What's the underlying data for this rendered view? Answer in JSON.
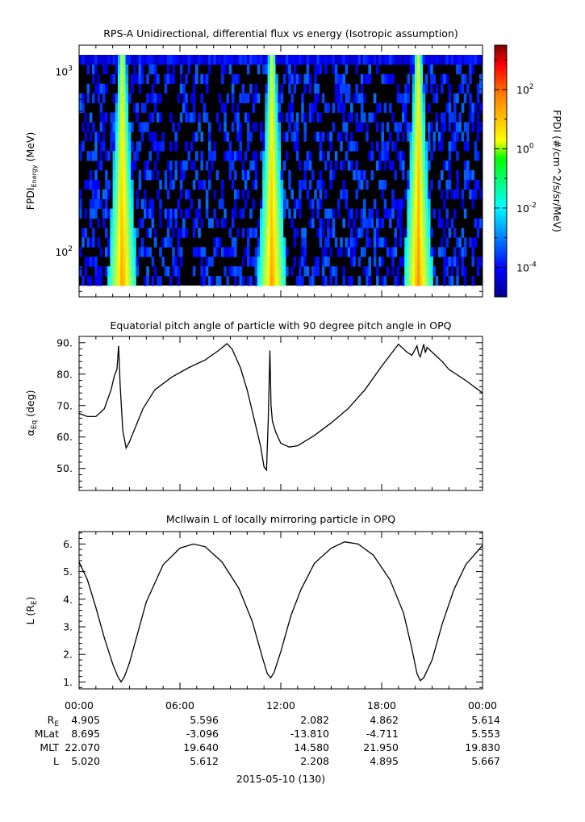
{
  "date_label": "2015-05-10 (130)",
  "time_ticks": [
    "00:00",
    "06:00",
    "12:00",
    "18:00",
    "00:00"
  ],
  "ephemeris": {
    "rows": [
      {
        "label": "R",
        "sub": "E",
        "values": [
          "4.905",
          "5.596",
          "2.082",
          "4.862",
          "5.614"
        ]
      },
      {
        "label": "MLat",
        "sub": "",
        "values": [
          "8.695",
          "-3.096",
          "-13.810",
          "-4.711",
          "5.553"
        ]
      },
      {
        "label": "MLT",
        "sub": "",
        "values": [
          "22.070",
          "19.640",
          "14.580",
          "21.950",
          "19.830"
        ]
      },
      {
        "label": "L",
        "sub": "",
        "values": [
          "5.020",
          "5.612",
          "2.208",
          "4.895",
          "5.667"
        ]
      }
    ]
  },
  "colors": {
    "line": "#000000",
    "background": "#000000",
    "fill_gap_color": "#ffffff"
  },
  "chart_data": [
    {
      "type": "heatmap",
      "title": "RPS-A Unidirectional, differential flux vs energy (Isotropic assumption)",
      "ylabel": "FPDI",
      "ylabel_sub": "Energy",
      "ylabel_units": "(MeV)",
      "yscale": "log",
      "ylim": [
        56,
        1400
      ],
      "yticks": [
        {
          "value": 100,
          "base": "10",
          "exp": "2"
        },
        {
          "value": 1000,
          "base": "10",
          "exp": "3"
        }
      ],
      "xlim": [
        0,
        24
      ],
      "colorbar": {
        "label": "FPDI (#/cm^2/s/sr/MeV)",
        "scale": "log",
        "range_exp": [
          -5,
          3.5
        ],
        "colormap": "jet",
        "ticks": [
          {
            "base": "10",
            "exp": "2",
            "value_exp": 2
          },
          {
            "base": "10",
            "exp": "0",
            "value_exp": 0
          },
          {
            "base": "10",
            "exp": "-2",
            "value_exp": -2
          },
          {
            "base": "10",
            "exp": "-4",
            "value_exp": -4
          }
        ]
      },
      "radiation_belt_passes": [
        {
          "center_hours": 2.5,
          "peak_log_flux": 1.2
        },
        {
          "center_hours": 11.4,
          "peak_log_flux": 1.2
        },
        {
          "center_hours": 20.1,
          "peak_log_flux": 1.3
        }
      ]
    },
    {
      "type": "line",
      "title": "Equatorial pitch angle of particle with 90 degree pitch angle in OPQ",
      "ylabel": "α",
      "ylabel_sub": "Eq",
      "ylabel_units": "(deg)",
      "xlim": [
        0,
        24
      ],
      "ylim": [
        43,
        92
      ],
      "yticks": [
        "50.",
        "60.",
        "70.",
        "80.",
        "90."
      ],
      "x": [
        0,
        0.5,
        1.0,
        1.5,
        1.9,
        2.1,
        2.25,
        2.35,
        2.45,
        2.6,
        2.8,
        3.0,
        3.3,
        3.8,
        4.5,
        5.5,
        6.5,
        7.5,
        8.3,
        8.8,
        9.1,
        9.6,
        10.0,
        10.4,
        10.8,
        11.0,
        11.15,
        11.25,
        11.35,
        11.42,
        11.5,
        11.7,
        12.0,
        12.5,
        13.0,
        14.0,
        15.0,
        16.0,
        17.0,
        18.0,
        18.5,
        19.0,
        19.5,
        19.8,
        20.1,
        20.2,
        20.3,
        20.4,
        20.5,
        20.6,
        20.7,
        20.8,
        21.2,
        21.6,
        22.0,
        23.0,
        24.0
      ],
      "y": [
        67.5,
        66.5,
        66.5,
        69.0,
        75.0,
        79.5,
        81.5,
        89.0,
        76.0,
        62.0,
        56.5,
        58.5,
        62.5,
        69.0,
        75.0,
        79.0,
        82.0,
        84.5,
        87.5,
        89.7,
        88.0,
        82.0,
        75.0,
        66.0,
        57.0,
        50.5,
        49.5,
        65.0,
        87.5,
        70.0,
        65.0,
        61.5,
        58.0,
        56.8,
        57.2,
        60.5,
        64.5,
        69.0,
        75.0,
        82.5,
        86.0,
        89.5,
        87.0,
        86.0,
        89.0,
        86.5,
        85.5,
        87.5,
        89.5,
        86.8,
        88.5,
        88.0,
        86.0,
        84.0,
        81.5,
        78.0,
        74.0
      ]
    },
    {
      "type": "line",
      "title": "McIlwain L of locally mirroring particle in OPQ",
      "ylabel": "L (R",
      "ylabel_sub": "E",
      "ylabel_units": ")",
      "xlim": [
        0,
        24
      ],
      "ylim": [
        0.75,
        6.45
      ],
      "yticks": [
        "1.",
        "2.",
        "3.",
        "4.",
        "5.",
        "6."
      ],
      "x": [
        0,
        0.5,
        1.0,
        1.5,
        2.0,
        2.3,
        2.5,
        2.7,
        3.0,
        3.5,
        4.0,
        5.0,
        6.0,
        6.8,
        7.5,
        8.5,
        9.5,
        10.3,
        10.9,
        11.2,
        11.4,
        11.6,
        12.0,
        12.6,
        13.2,
        14.0,
        15.0,
        15.8,
        16.6,
        17.5,
        18.5,
        19.3,
        19.8,
        20.1,
        20.3,
        20.5,
        21.0,
        21.6,
        22.3,
        23.0,
        24.0
      ],
      "y": [
        5.35,
        4.7,
        3.7,
        2.6,
        1.65,
        1.2,
        1.0,
        1.2,
        1.7,
        2.8,
        3.9,
        5.25,
        5.85,
        6.0,
        5.9,
        5.35,
        4.4,
        3.2,
        1.9,
        1.3,
        1.15,
        1.35,
        2.1,
        3.4,
        4.35,
        5.3,
        5.85,
        6.08,
        6.0,
        5.6,
        4.7,
        3.5,
        2.2,
        1.3,
        1.05,
        1.15,
        1.8,
        3.1,
        4.35,
        5.25,
        5.95
      ]
    }
  ]
}
